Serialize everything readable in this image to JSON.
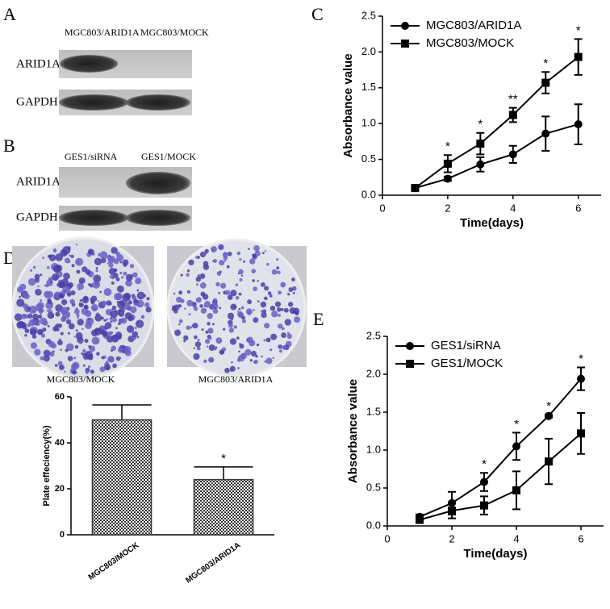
{
  "panel_labels": [
    "A",
    "B",
    "C",
    "D",
    "E"
  ],
  "blot_a": {
    "lanes": [
      "MGC803/ARID1A",
      "MGC803/MOCK"
    ],
    "rows": [
      "ARID1A",
      "GAPDH"
    ]
  },
  "blot_b": {
    "lanes": [
      "GES1/siRNA",
      "GES1/MOCK"
    ],
    "rows": [
      "ARID1A",
      "GAPDH"
    ]
  },
  "colony_labels": [
    "MGC803/MOCK",
    "MGC803/ARID1A"
  ],
  "chart_data": [
    {
      "type": "line",
      "x_label": "Time(days)",
      "y_label": "Absorbance value",
      "x": [
        1,
        2,
        3,
        4,
        5,
        6
      ],
      "xlim": [
        0,
        6.7
      ],
      "xticks": [
        0,
        2,
        4,
        6
      ],
      "ylim": [
        0,
        2.5
      ],
      "yticks": [
        0,
        0.5,
        1.0,
        1.5,
        2.0,
        2.5
      ],
      "legend": "upper left",
      "series": [
        {
          "name": "MGC803/ARID1A",
          "color": "#000000",
          "marker": "circle",
          "values": [
            0.1,
            0.23,
            0.43,
            0.57,
            0.86,
            0.99
          ],
          "errors": [
            0.02,
            0.03,
            0.1,
            0.12,
            0.24,
            0.28
          ]
        },
        {
          "name": "MGC803/MOCK",
          "color": "#000000",
          "marker": "square",
          "values": [
            0.1,
            0.44,
            0.72,
            1.12,
            1.57,
            1.93
          ],
          "errors": [
            0.02,
            0.12,
            0.15,
            0.1,
            0.15,
            0.25
          ]
        }
      ],
      "annotations": [
        {
          "x": 2,
          "text": "*"
        },
        {
          "x": 3,
          "text": "*"
        },
        {
          "x": 4,
          "text": "**"
        },
        {
          "x": 5,
          "text": "*"
        },
        {
          "x": 6,
          "text": "*"
        }
      ]
    },
    {
      "type": "bar",
      "y_label": "Plate effeciency(%)",
      "categories": [
        "MGC803/MOCK",
        "MGC803/ARID1A"
      ],
      "values": [
        50,
        24
      ],
      "errors": [
        6.5,
        5.5
      ],
      "color": "#333333",
      "ylim": [
        0,
        60
      ],
      "yticks": [
        0,
        20,
        40,
        60
      ],
      "annotations": [
        {
          "x": "MGC803/ARID1A",
          "text": "*"
        }
      ]
    },
    {
      "type": "line",
      "x_label": "Time(days)",
      "y_label": "Absorbance value",
      "x": [
        1,
        2,
        3,
        4,
        5,
        6
      ],
      "xlim": [
        0,
        6.7
      ],
      "xticks": [
        0,
        2,
        4,
        6
      ],
      "ylim": [
        0,
        2.5
      ],
      "yticks": [
        0,
        0.5,
        1.0,
        1.5,
        2.0,
        2.5
      ],
      "legend": "upper left",
      "series": [
        {
          "name": "GES1/siRNA",
          "color": "#000000",
          "marker": "circle",
          "values": [
            0.12,
            0.3,
            0.58,
            1.05,
            1.45,
            1.94
          ],
          "errors": [
            0.03,
            0.15,
            0.12,
            0.18,
            0.02,
            0.15
          ]
        },
        {
          "name": "GES1/MOCK",
          "color": "#000000",
          "marker": "square",
          "values": [
            0.08,
            0.2,
            0.27,
            0.47,
            0.85,
            1.22
          ],
          "errors": [
            0.03,
            0.1,
            0.12,
            0.25,
            0.3,
            0.27
          ]
        }
      ],
      "annotations": [
        {
          "x": 3,
          "text": "*"
        },
        {
          "x": 4,
          "text": "*"
        },
        {
          "x": 5,
          "text": "*"
        },
        {
          "x": 6,
          "text": "*"
        }
      ]
    }
  ]
}
